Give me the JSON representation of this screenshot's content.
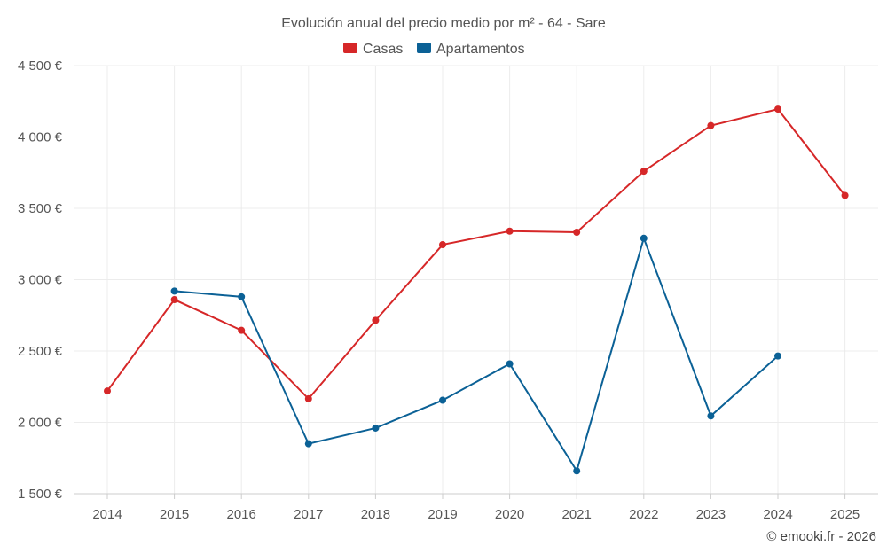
{
  "chart_data": {
    "type": "line",
    "title": "Evolución anual del precio medio por m² - 64 - Sare",
    "categories": [
      "2014",
      "2015",
      "2016",
      "2017",
      "2018",
      "2019",
      "2020",
      "2021",
      "2022",
      "2023",
      "2024",
      "2025"
    ],
    "series": [
      {
        "name": "Casas",
        "color": "#d62728",
        "values": [
          2220,
          2860,
          2645,
          2165,
          2715,
          3245,
          3340,
          3332,
          3760,
          4080,
          4195,
          3590
        ]
      },
      {
        "name": "Apartamentos",
        "color": "#0b6196",
        "values": [
          null,
          2920,
          2880,
          1850,
          1960,
          2155,
          2410,
          1660,
          3290,
          2045,
          2465,
          null
        ]
      }
    ],
    "ylim": [
      1500,
      4500
    ],
    "yticks": [
      1500,
      2000,
      2500,
      3000,
      3500,
      4000,
      4500
    ],
    "ytick_labels": [
      "1 500 €",
      "2 000 €",
      "2 500 €",
      "3 000 €",
      "3 500 €",
      "4 000 €",
      "4 500 €"
    ],
    "grid": true,
    "legend_position": "top-center",
    "xlabel": "",
    "ylabel": ""
  },
  "footer": {
    "copyright": "© emooki.fr - 2026"
  }
}
